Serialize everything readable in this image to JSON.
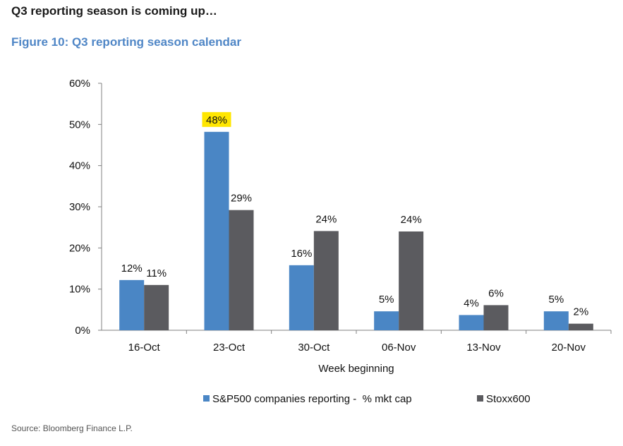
{
  "headline": "Q3 reporting season is coming up…",
  "figure_title": "Figure 10: Q3 reporting season calendar",
  "source": "Source: Bloomberg Finance L.P.",
  "colors": {
    "series1": "#4a86c5",
    "series2": "#5b5b5f",
    "highlight": "#ffe600",
    "axis": "#808080",
    "title": "#4f86c6"
  },
  "chart_data": {
    "type": "bar",
    "title": "Q3 reporting season calendar",
    "xlabel": "Week beginning",
    "ylabel": "",
    "ylim": [
      0,
      60
    ],
    "yticks": [
      "0%",
      "10%",
      "20%",
      "30%",
      "40%",
      "50%",
      "60%"
    ],
    "categories": [
      "16-Oct",
      "23-Oct",
      "30-Oct",
      "06-Nov",
      "13-Nov",
      "20-Nov"
    ],
    "series": [
      {
        "name": "S&P500 companies reporting -  % mkt cap",
        "values": [
          12.2,
          48.2,
          15.8,
          4.6,
          3.7,
          4.6
        ],
        "labels": [
          "12%",
          "48%",
          "16%",
          "5%",
          "4%",
          "5%"
        ]
      },
      {
        "name": "Stoxx600",
        "values": [
          11.0,
          29.2,
          24.1,
          24.0,
          6.1,
          1.6
        ],
        "labels": [
          "11%",
          "29%",
          "24%",
          "24%",
          "6%",
          "2%"
        ]
      }
    ],
    "highlighted_label": {
      "series": 0,
      "index": 1
    },
    "legend_position": "bottom"
  }
}
